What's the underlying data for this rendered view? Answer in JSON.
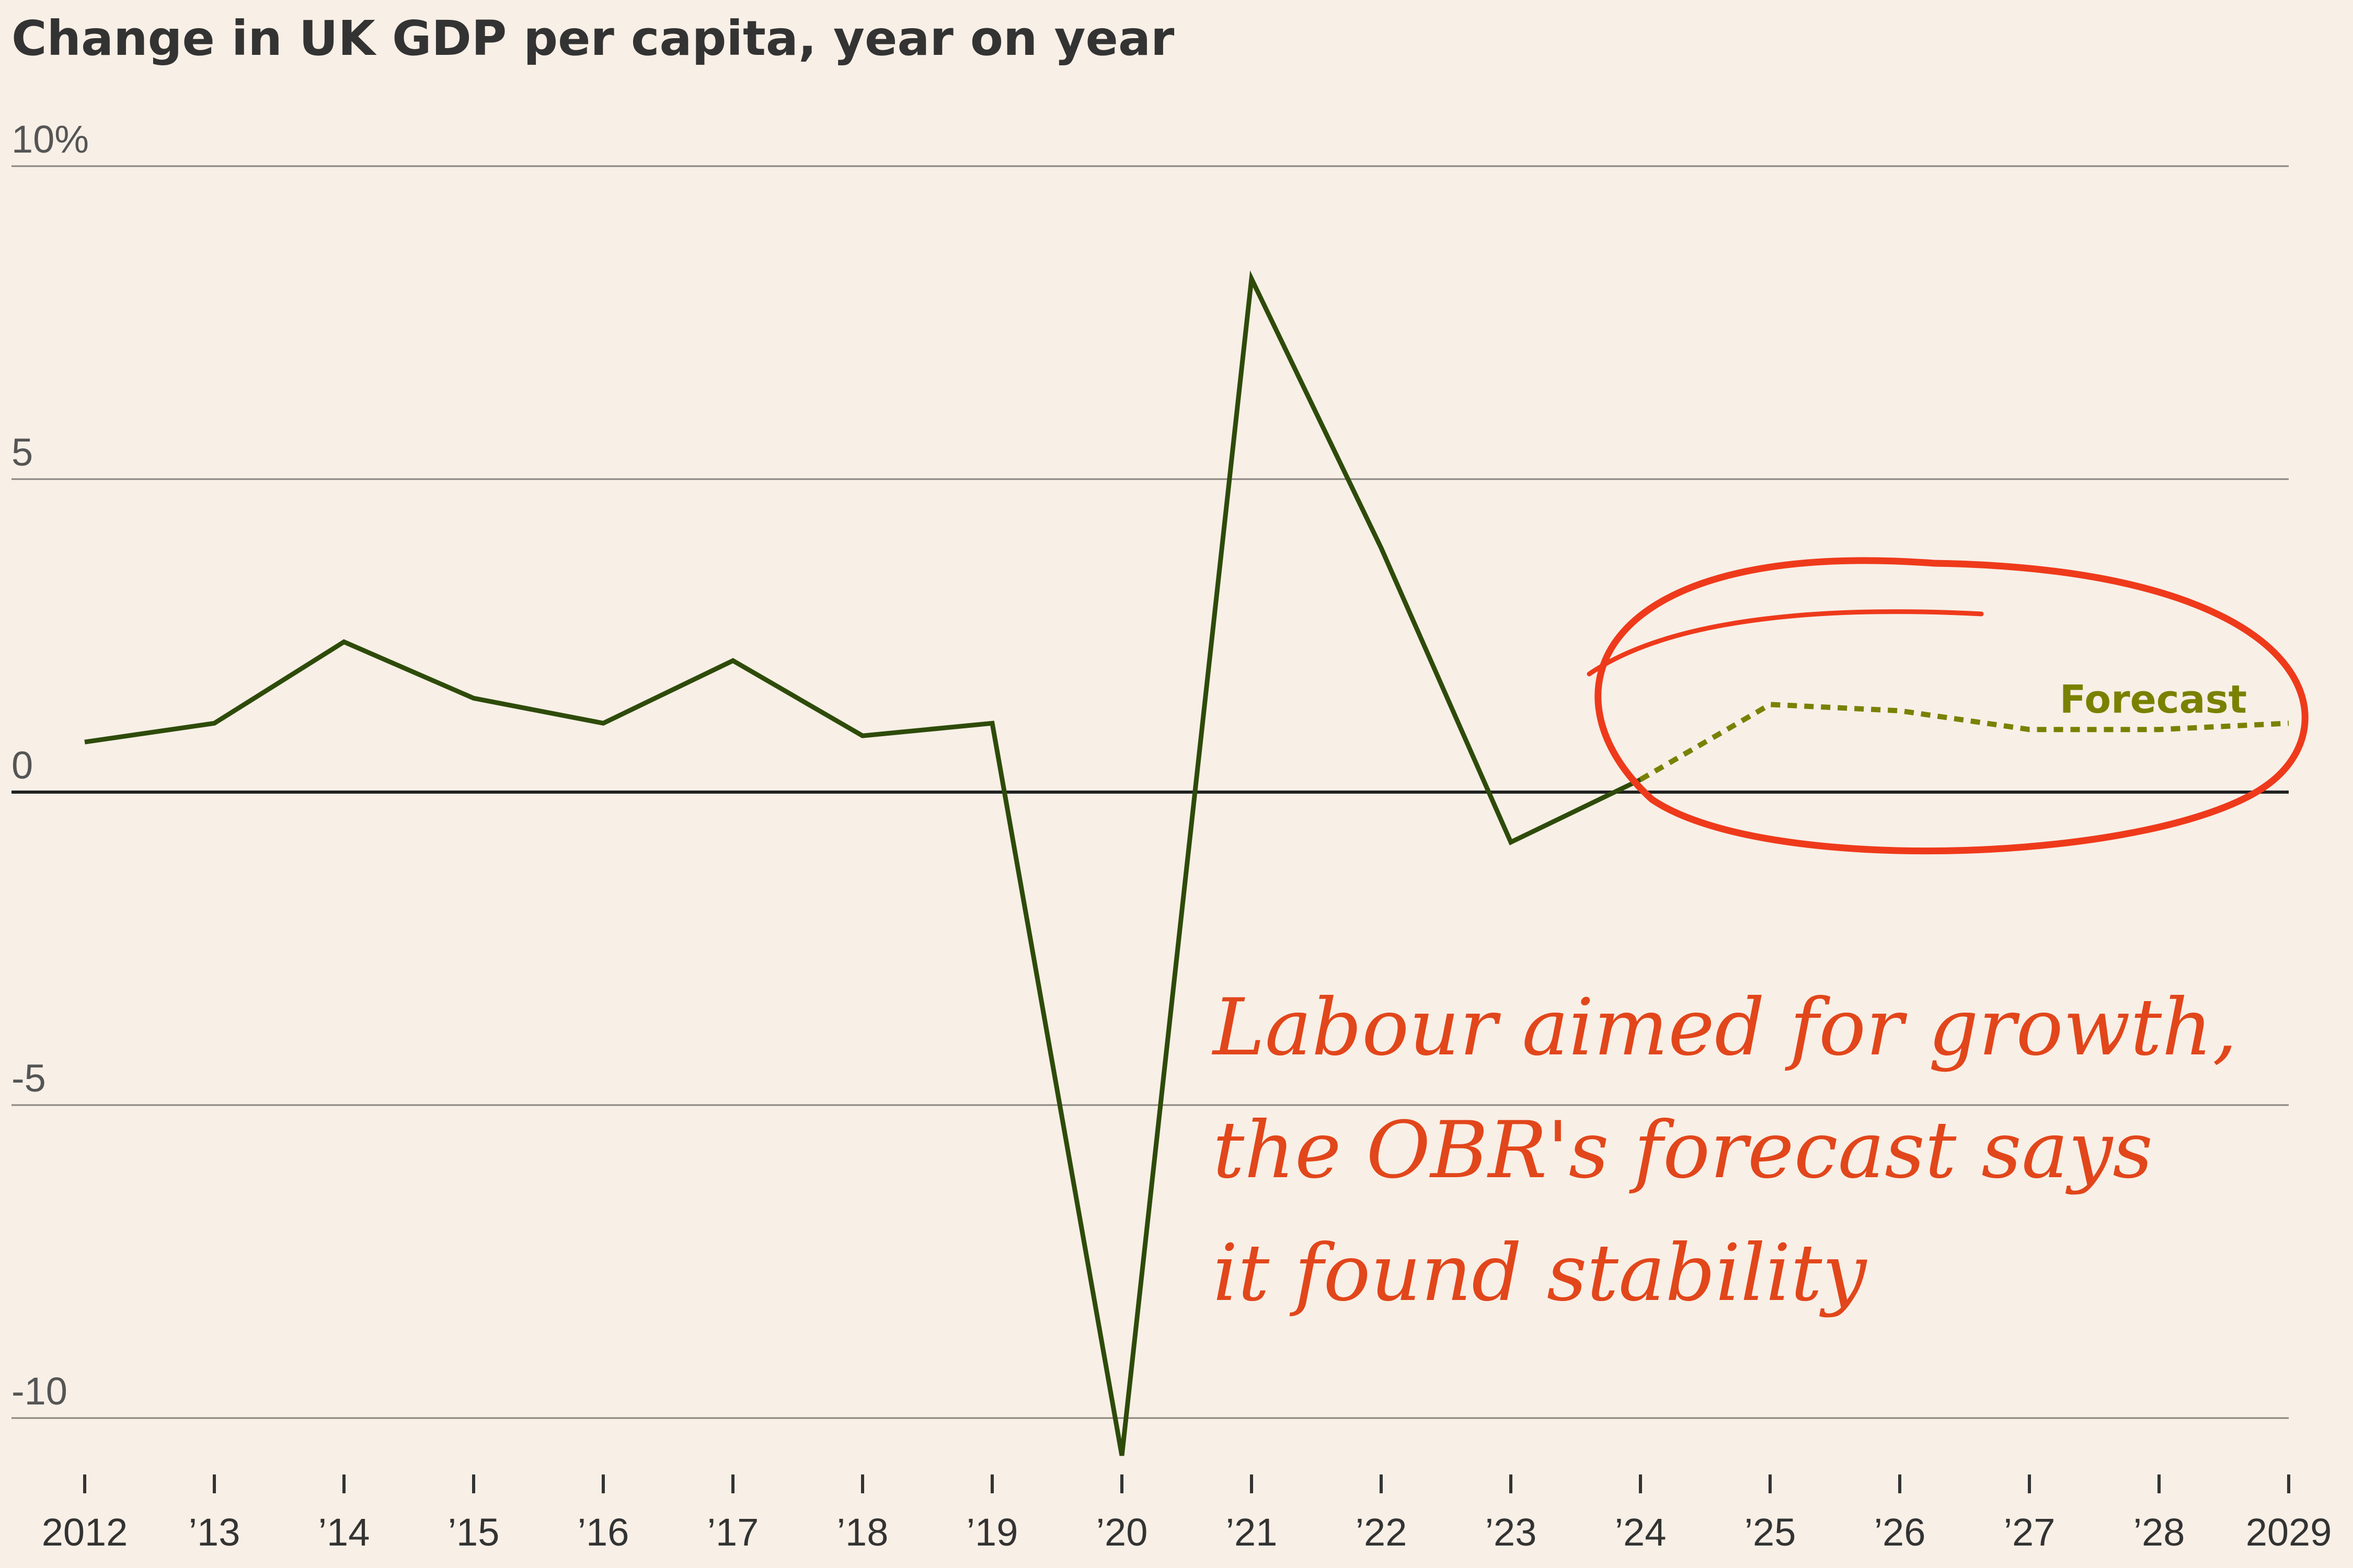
{
  "chart_data": {
    "type": "line",
    "title": "Change in UK GDP per capita, year on year",
    "x": [
      2012,
      2013,
      2014,
      2015,
      2016,
      2017,
      2018,
      2019,
      2020,
      2021,
      2022,
      2023,
      2024,
      2025,
      2026,
      2027,
      2028,
      2029
    ],
    "x_tick_labels": [
      "2012",
      "’13",
      "’14",
      "’15",
      "’16",
      "’17",
      "’18",
      "’19",
      "’20",
      "’21",
      "’22",
      "’23",
      "’24",
      "’25",
      "’26",
      "’27",
      "’28",
      "2029"
    ],
    "y_ticks": [
      10,
      5,
      0,
      -5,
      -10
    ],
    "y_tick_labels": [
      "10%",
      "5",
      "0",
      "-5",
      "-10"
    ],
    "ylim": [
      -10.6,
      10
    ],
    "xlim": [
      2012,
      2029
    ],
    "grid": true,
    "series": [
      {
        "name": "",
        "style": "solid",
        "color": "#2e4b0a",
        "points": [
          [
            2012,
            0.8
          ],
          [
            2013,
            1.1
          ],
          [
            2014,
            2.4
          ],
          [
            2015,
            1.5
          ],
          [
            2016,
            1.1
          ],
          [
            2017,
            2.1
          ],
          [
            2018,
            0.9
          ],
          [
            2019,
            1.1
          ],
          [
            2020,
            -10.6
          ],
          [
            2021,
            8.2
          ],
          [
            2022,
            3.9
          ],
          [
            2023,
            -0.8
          ],
          [
            2024,
            0.2
          ]
        ]
      },
      {
        "name": "Forecast",
        "style": "dotted",
        "color": "#7a8100",
        "points": [
          [
            2024,
            0.2
          ],
          [
            2025,
            1.4
          ],
          [
            2026,
            1.3
          ],
          [
            2027,
            1.0
          ],
          [
            2028,
            1.0
          ],
          [
            2029,
            1.1
          ]
        ]
      }
    ],
    "annotation": {
      "lines": [
        "Labour aimed for growth,",
        "the OBR's forecast says",
        "it found stability"
      ],
      "color": "#e2461b",
      "circle_color": "#ee3a1b"
    }
  }
}
